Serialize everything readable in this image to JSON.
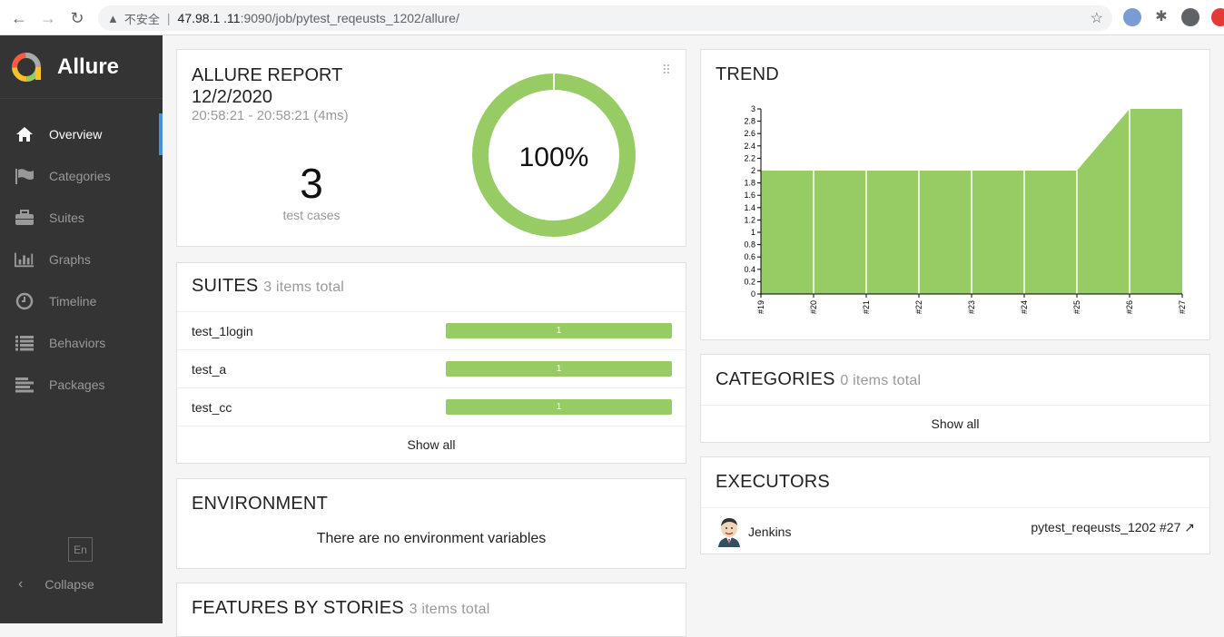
{
  "browser": {
    "warning_text": "不安全",
    "host": "47.98.1  .11",
    "path": ":9090/job/pytest_reqeusts_1202/allure/"
  },
  "sidebar": {
    "brand": "Allure",
    "items": [
      {
        "label": "Overview",
        "icon": "home-icon"
      },
      {
        "label": "Categories",
        "icon": "flag-icon"
      },
      {
        "label": "Suites",
        "icon": "briefcase-icon"
      },
      {
        "label": "Graphs",
        "icon": "bar-chart-icon"
      },
      {
        "label": "Timeline",
        "icon": "clock-icon"
      },
      {
        "label": "Behaviors",
        "icon": "list-icon"
      },
      {
        "label": "Packages",
        "icon": "align-left-icon"
      }
    ],
    "language": "En",
    "collapse": "Collapse"
  },
  "summary": {
    "title": "ALLURE REPORT",
    "date": "12/2/2020",
    "time_range": "20:58:21 - 20:58:21 (4ms)",
    "count": "3",
    "count_label": "test cases",
    "percent": "100%",
    "percent_value": 1.0
  },
  "suites": {
    "title": "SUITES",
    "subtitle": "3 items total",
    "rows": [
      {
        "name": "test_1login",
        "count": "1"
      },
      {
        "name": "test_a",
        "count": "1"
      },
      {
        "name": "test_cc",
        "count": "1"
      }
    ],
    "show_all": "Show all"
  },
  "environment": {
    "title": "ENVIRONMENT",
    "message": "There are no environment variables"
  },
  "features": {
    "title": "FEATURES BY STORIES",
    "subtitle": "3 items total"
  },
  "trend": {
    "title": "TREND"
  },
  "chart_data": {
    "type": "area",
    "title": "TREND",
    "categories": [
      "#19",
      "#20",
      "#21",
      "#22",
      "#23",
      "#24",
      "#25",
      "#26",
      "#27"
    ],
    "series": [
      {
        "values": [
          2,
          2,
          2,
          2,
          2,
          2,
          2,
          3,
          3
        ]
      }
    ],
    "ylim": [
      0,
      3
    ],
    "yticks": [
      0,
      0.2,
      0.4,
      0.6,
      0.8,
      1,
      1.2,
      1.4,
      1.6,
      1.8,
      2,
      2.2,
      2.4,
      2.6,
      2.8,
      3
    ],
    "color": "#97cc64"
  },
  "categories": {
    "title": "CATEGORIES",
    "subtitle": "0 items total",
    "show_all": "Show all"
  },
  "executors": {
    "title": "EXECUTORS",
    "name": "Jenkins",
    "build": "pytest_reqeusts_1202 #27"
  }
}
